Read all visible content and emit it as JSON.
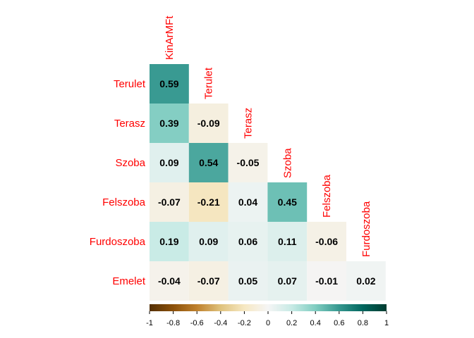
{
  "chart_data": {
    "type": "heatmap",
    "variables": [
      "KinArMFt",
      "Terulet",
      "Terasz",
      "Szoba",
      "Felszoba",
      "Furdoszoba"
    ],
    "row_labels": [
      "Terulet",
      "Terasz",
      "Szoba",
      "Felszoba",
      "Furdoszoba",
      "Emelet"
    ],
    "column_labels": [
      "KinArMFt",
      "Terulet",
      "Terasz",
      "Szoba",
      "Felszoba",
      "Furdoszoba"
    ],
    "values": [
      [
        0.59
      ],
      [
        0.39,
        -0.09
      ],
      [
        0.09,
        0.54,
        -0.05
      ],
      [
        -0.07,
        -0.21,
        0.04,
        0.45
      ],
      [
        0.19,
        0.09,
        0.06,
        0.11,
        -0.06
      ],
      [
        -0.04,
        -0.07,
        0.05,
        0.07,
        -0.01,
        0.02
      ]
    ],
    "value_labels": [
      [
        "0.59"
      ],
      [
        "0.39",
        "-0.09"
      ],
      [
        "0.09",
        "0.54",
        "-0.05"
      ],
      [
        "-0.07",
        "-0.21",
        "0.04",
        "0.45"
      ],
      [
        "0.19",
        "0.09",
        "0.06",
        "0.11",
        "-0.06"
      ],
      [
        "-0.04",
        "-0.07",
        "0.05",
        "0.07",
        "-0.01",
        "0.02"
      ]
    ],
    "layout": "lower-triangle",
    "colorbar": {
      "range": [
        -1,
        1
      ],
      "ticks": [
        -1,
        -0.8,
        -0.6,
        -0.4,
        -0.2,
        0,
        0.2,
        0.4,
        0.6,
        0.8,
        1
      ],
      "tick_labels": [
        "-1",
        "-0.8",
        "-0.6",
        "-0.4",
        "-0.2",
        "0",
        "0.2",
        "0.4",
        "0.6",
        "0.8",
        "1"
      ],
      "placement": "bottom",
      "palette": [
        "#543005",
        "#8C510A",
        "#BF812D",
        "#DFC27D",
        "#F6E8C3",
        "#F5F5F5",
        "#C7EAE5",
        "#80CDC1",
        "#35978F",
        "#01665E",
        "#003C30"
      ]
    },
    "label_color": "#FF0000",
    "value_color": "#000000",
    "grid": false
  }
}
